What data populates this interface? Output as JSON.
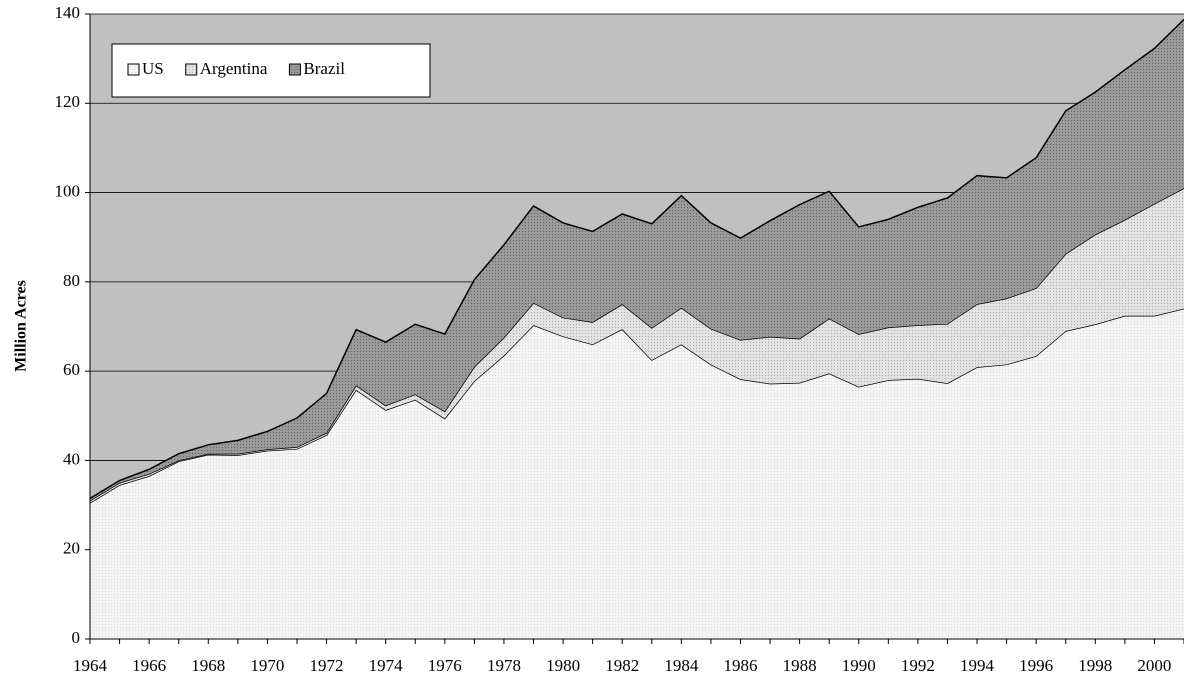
{
  "chart_data": {
    "type": "stacked_area",
    "y_label": "Million Acres",
    "x": [
      1964,
      1965,
      1966,
      1967,
      1968,
      1969,
      1970,
      1971,
      1972,
      1973,
      1974,
      1975,
      1976,
      1977,
      1978,
      1979,
      1980,
      1981,
      1982,
      1983,
      1984,
      1985,
      1986,
      1987,
      1988,
      1989,
      1990,
      1991,
      1992,
      1993,
      1994,
      1995,
      1996,
      1997,
      1998,
      1999,
      2000,
      2001
    ],
    "series": [
      {
        "name": "US",
        "color": "#f4f4f4",
        "values": [
          30.5,
          34.5,
          36.5,
          39.8,
          41.3,
          41.2,
          42.2,
          42.6,
          45.7,
          55.8,
          51.3,
          53.6,
          49.4,
          57.8,
          63.5,
          70.3,
          67.8,
          66,
          69.4,
          62.5,
          66,
          61.5,
          58.2,
          57.2,
          57.4,
          59.5,
          56.5,
          58,
          58.3,
          57.3,
          60.9,
          61.5,
          63.4,
          69,
          70.5,
          72.4,
          72.4,
          74
        ]
      },
      {
        "name": "Argentina",
        "color": "#e2e2e2",
        "values": [
          0.5,
          0.5,
          0.5,
          0.2,
          0.2,
          0.3,
          0.3,
          0.4,
          0.5,
          1,
          1,
          1.2,
          1.6,
          3.2,
          4,
          5,
          4.2,
          5,
          5.6,
          7.2,
          8.2,
          8,
          8.8,
          10.5,
          9.9,
          12.3,
          11.8,
          11.8,
          12,
          13.3,
          14.1,
          14.8,
          15.2,
          17.3,
          20.1,
          21.5,
          25.1,
          27
        ]
      },
      {
        "name": "Brazil",
        "color": "#9a9a9a",
        "values": [
          0.5,
          0.5,
          1,
          1.5,
          2,
          3,
          4,
          6.5,
          8.8,
          12.5,
          14.2,
          15.7,
          17.3,
          19.5,
          20.8,
          21.7,
          21.2,
          20.3,
          20.2,
          23.3,
          25.1,
          23.7,
          22.8,
          26,
          30,
          28.5,
          24,
          24.2,
          26.4,
          28.2,
          28.8,
          27,
          29.2,
          32,
          31.9,
          33.6,
          34.8,
          37.8
        ]
      }
    ],
    "xlim": [
      1964,
      2001
    ],
    "xticks": [
      1964,
      1966,
      1968,
      1970,
      1972,
      1974,
      1976,
      1978,
      1980,
      1982,
      1984,
      1986,
      1988,
      1990,
      1992,
      1994,
      1996,
      1998,
      2000
    ],
    "ylim": [
      0,
      140
    ],
    "yticks": [
      0,
      20,
      40,
      60,
      80,
      100,
      120,
      140
    ],
    "grid": true,
    "plot_background": "#c0c0c0",
    "legend_position": "upper left"
  }
}
